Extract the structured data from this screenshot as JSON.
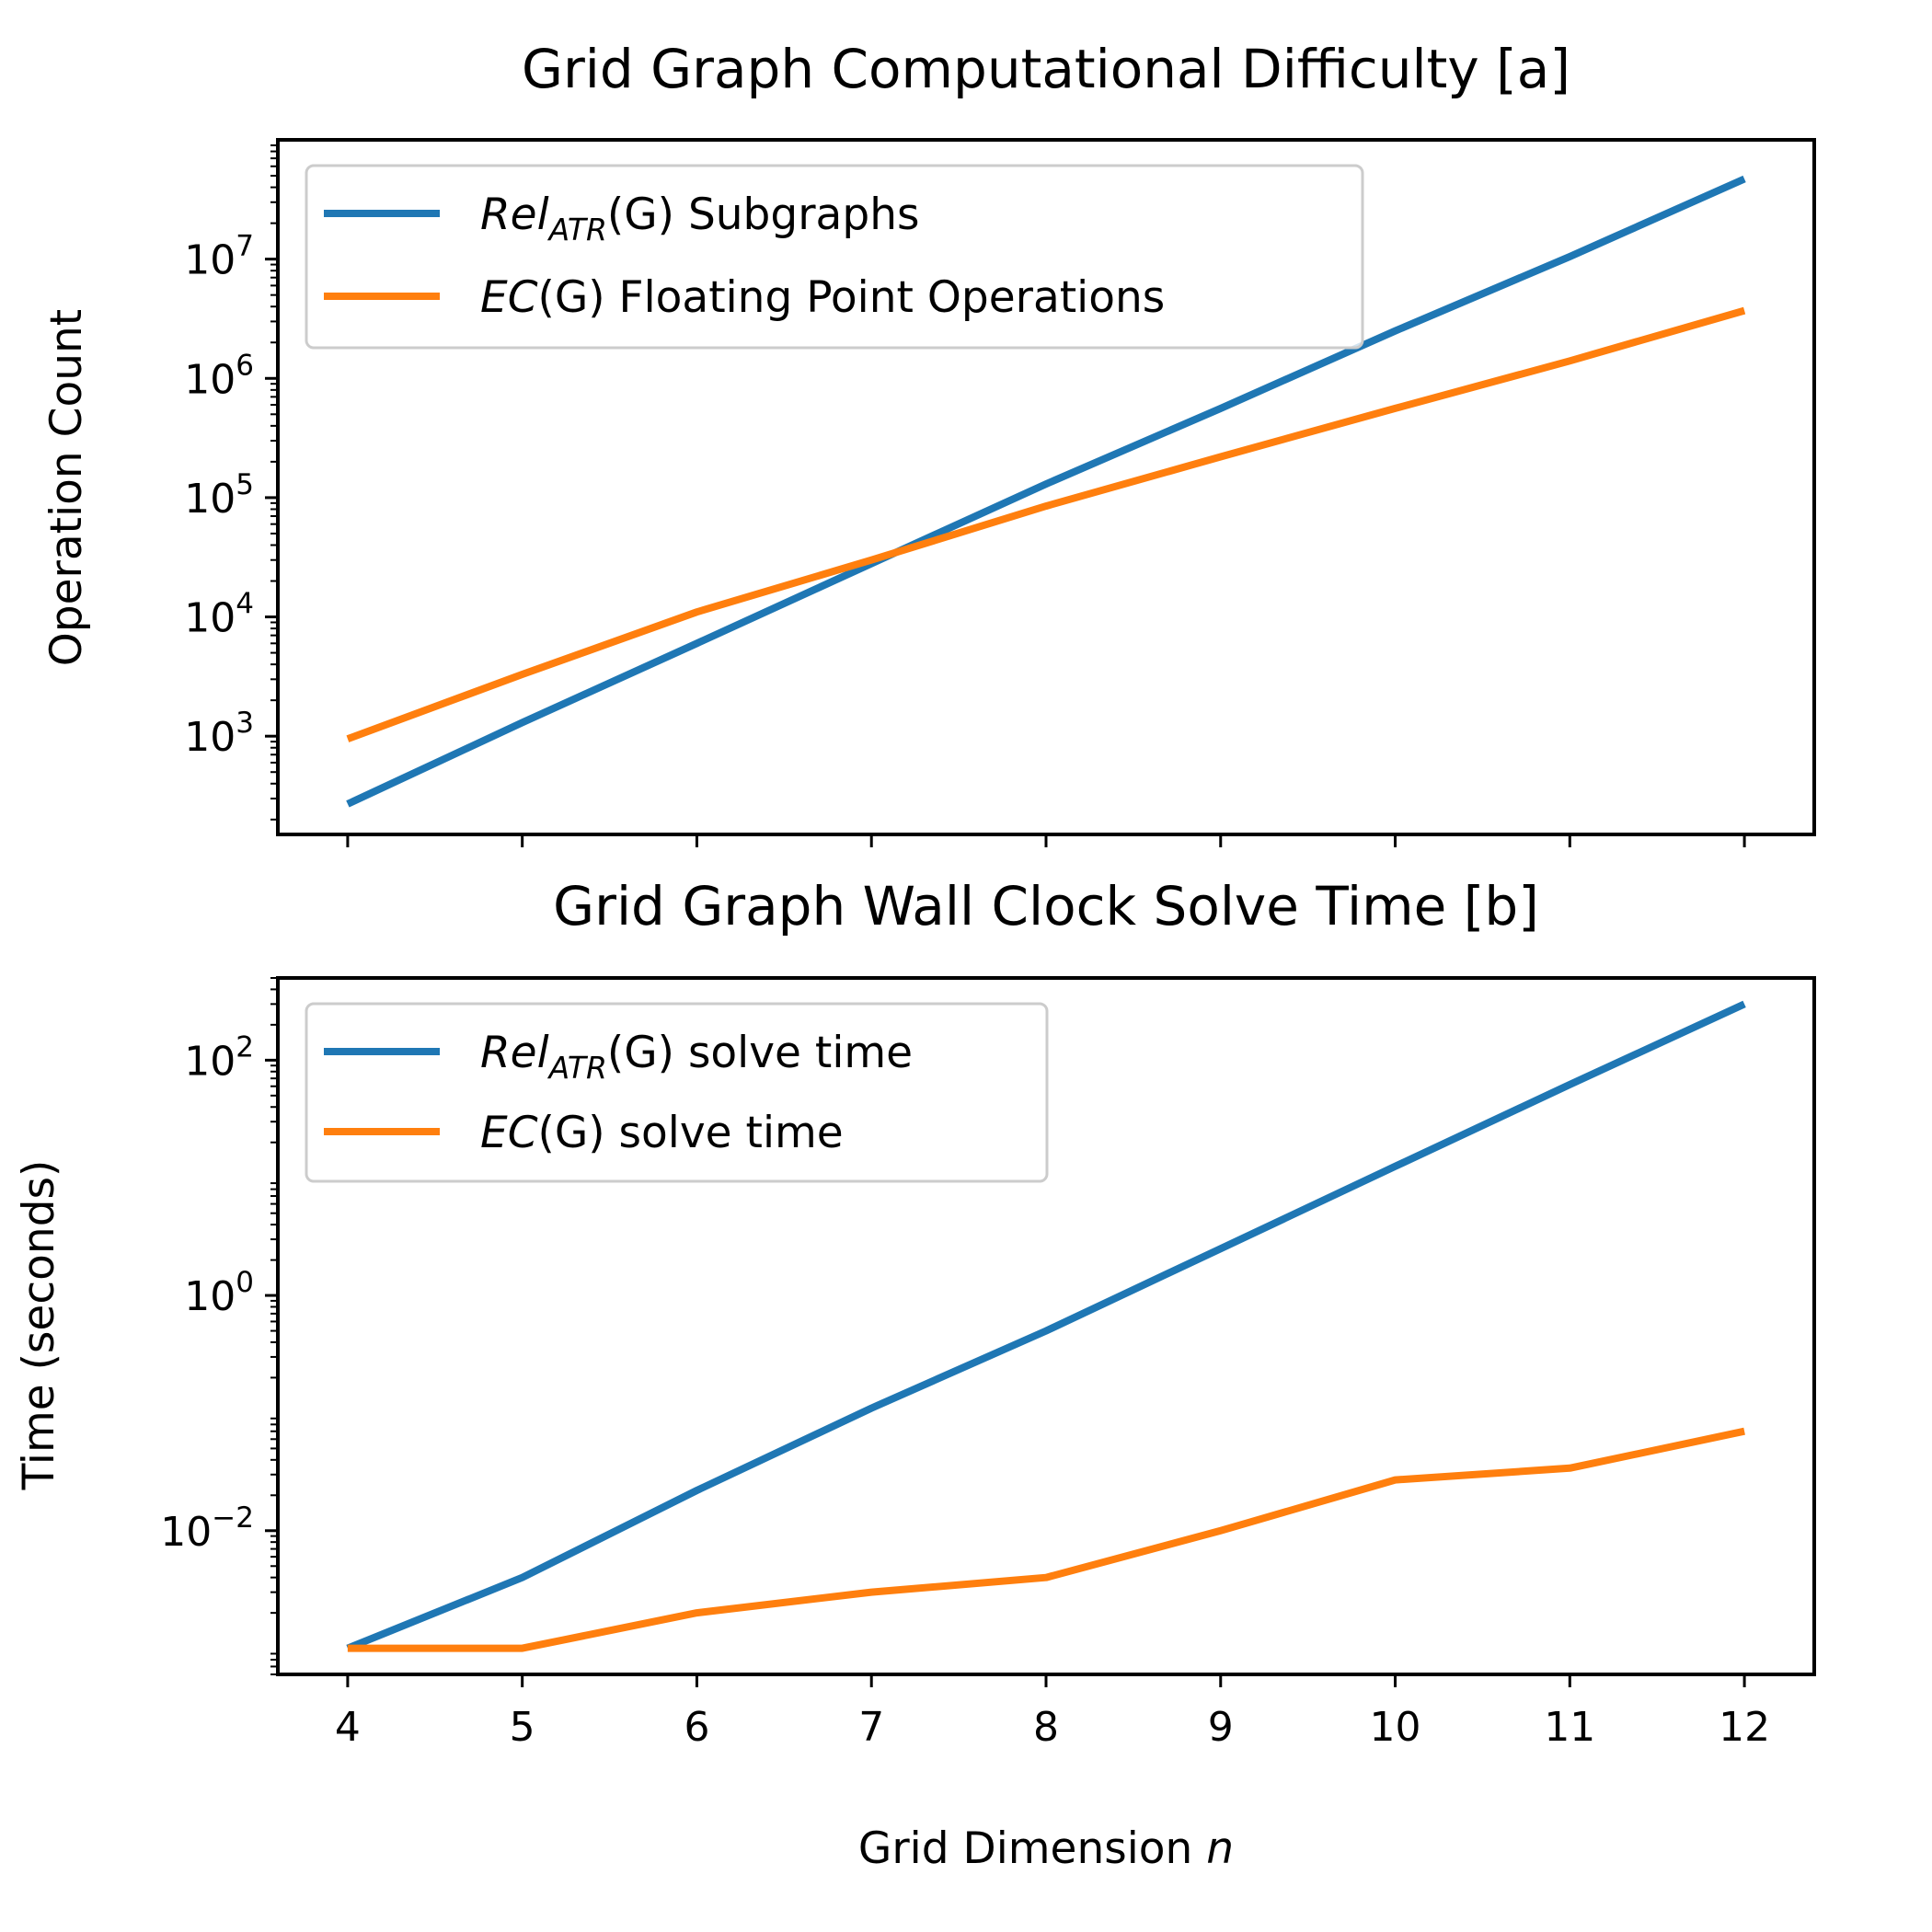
{
  "chart_data": [
    {
      "type": "line",
      "title": "Grid Graph Computational Difficulty [a]",
      "xlabel": "",
      "ylabel": "Operation Count",
      "yscale": "log",
      "x": [
        4,
        5,
        6,
        7,
        8,
        9,
        10,
        11,
        12
      ],
      "xlim": [
        3.6,
        12.4
      ],
      "ylim": [
        150,
        100000000
      ],
      "yticks": [
        {
          "base": "10",
          "exp": "3",
          "value": 1000
        },
        {
          "base": "10",
          "exp": "4",
          "value": 10000
        },
        {
          "base": "10",
          "exp": "5",
          "value": 100000
        },
        {
          "base": "10",
          "exp": "6",
          "value": 1000000
        },
        {
          "base": "10",
          "exp": "7",
          "value": 10000000
        }
      ],
      "grid": false,
      "legend_position": "upper-left",
      "series": [
        {
          "name_main": "Rel",
          "name_sub": "ATR",
          "name_rest": "(G) Subgraphs",
          "color": "#1f77b4",
          "values": [
            270,
            1300,
            6000,
            28000,
            130000,
            560000,
            2500000,
            10500000,
            47000000
          ]
        },
        {
          "name_main": "EC",
          "name_sub": "",
          "name_rest": "(G) Floating Point Operations",
          "color": "#ff7f0e",
          "values": [
            950,
            3300,
            11000,
            30000,
            85000,
            220000,
            560000,
            1400000,
            3700000
          ]
        }
      ]
    },
    {
      "type": "line",
      "title": "Grid Graph Wall Clock Solve Time [b]",
      "xlabel": "Grid Dimension n",
      "xlabel_main": "Grid Dimension ",
      "xlabel_var": "n",
      "ylabel": "Time (seconds)",
      "yscale": "log",
      "x": [
        4,
        5,
        6,
        7,
        8,
        9,
        10,
        11,
        12
      ],
      "xlim": [
        3.6,
        12.4
      ],
      "ylim": [
        0.0006,
        500
      ],
      "xticks": [
        "4",
        "5",
        "6",
        "7",
        "8",
        "9",
        "10",
        "11",
        "12"
      ],
      "yticks": [
        {
          "base": "10",
          "exp": "−2",
          "value": 0.01
        },
        {
          "base": "10",
          "exp": "0",
          "value": 1
        },
        {
          "base": "10",
          "exp": "2",
          "value": 100
        }
      ],
      "grid": false,
      "legend_position": "upper-left",
      "series": [
        {
          "name_main": "Rel",
          "name_sub": "ATR",
          "name_rest": "(G) solve time",
          "color": "#1f77b4",
          "values": [
            0.001,
            0.004,
            0.022,
            0.11,
            0.5,
            2.5,
            12.5,
            62,
            300
          ]
        },
        {
          "name_main": "EC",
          "name_sub": "",
          "name_rest": "(G) solve time",
          "color": "#ff7f0e",
          "values": [
            0.001,
            0.001,
            0.002,
            0.003,
            0.004,
            0.01,
            0.027,
            0.034,
            0.07
          ]
        }
      ]
    }
  ]
}
